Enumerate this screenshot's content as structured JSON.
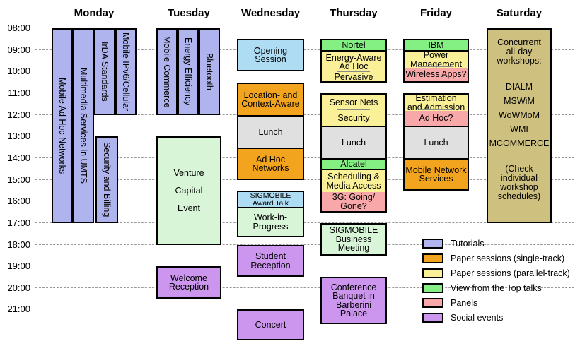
{
  "chart_data": {
    "type": "table",
    "subtype": "weekly-conference-schedule",
    "grid": "dashed hourly lines",
    "legend_position": "bottom-right",
    "days": [
      "Monday",
      "Tuesday",
      "Wednesday",
      "Thursday",
      "Friday",
      "Saturday"
    ],
    "time_axis": {
      "start": "08:00",
      "end": "21:00",
      "tick_interval_minutes": 60,
      "ticks": [
        "08:00",
        "09:00",
        "10:00",
        "11:00",
        "12:00",
        "13:00",
        "14:00",
        "15:00",
        "16:00",
        "17:00",
        "18:00",
        "19:00",
        "20:00",
        "21:00"
      ]
    },
    "colors": {
      "tutorial": "#AFB4EE",
      "single": "#F2A41E",
      "parallel": "#FAF098",
      "top": "#84F084",
      "panel": "#F8A8A8",
      "social": "#CC95EE",
      "special": "#AEDCF3",
      "misc": "#D8F5D8",
      "lunch": "#E0E0E0",
      "workshops": "#CEC07E"
    },
    "legend": [
      {
        "label": "Tutorials",
        "category": "tutorial"
      },
      {
        "label": "Paper sessions (single-track)",
        "category": "single"
      },
      {
        "label": "Paper sessions (parallel-track)",
        "category": "parallel"
      },
      {
        "label": "View from the Top talks",
        "category": "top"
      },
      {
        "label": "Panels",
        "category": "panel"
      },
      {
        "label": "Social events",
        "category": "social"
      }
    ],
    "events": [
      {
        "day": "Monday",
        "track": 0,
        "start": "08:00",
        "end": "17:00",
        "orientation": "vertical",
        "sessions": [
          {
            "label": "Mobile Ad Hoc Networks",
            "category": "tutorial"
          }
        ]
      },
      {
        "day": "Monday",
        "track": 1,
        "start": "08:00",
        "end": "17:00",
        "orientation": "vertical",
        "sessions": [
          {
            "label": "Multimedia Services in UMTS",
            "category": "tutorial"
          }
        ]
      },
      {
        "day": "Monday",
        "track": 2,
        "start": "08:00",
        "end": "12:00",
        "orientation": "vertical",
        "sessions": [
          {
            "label": "IrDA Standards",
            "category": "tutorial"
          }
        ]
      },
      {
        "day": "Monday",
        "track": 3,
        "start": "08:00",
        "end": "12:00",
        "orientation": "vertical",
        "sessions": [
          {
            "label": "Mobile IPv6/Cellular",
            "category": "tutorial"
          }
        ]
      },
      {
        "day": "Monday",
        "slot": "extra",
        "start": "13:00",
        "end": "17:00",
        "orientation": "vertical",
        "sessions": [
          {
            "label": "Security and Billing",
            "category": "tutorial"
          }
        ]
      },
      {
        "day": "Tuesday",
        "track": 0,
        "start": "08:00",
        "end": "12:00",
        "orientation": "vertical",
        "sessions": [
          {
            "label": "Mobile Commerce",
            "category": "tutorial"
          }
        ]
      },
      {
        "day": "Tuesday",
        "track": 1,
        "start": "08:00",
        "end": "12:00",
        "orientation": "vertical",
        "sessions": [
          {
            "label": "Energy Efficiency",
            "category": "tutorial"
          }
        ]
      },
      {
        "day": "Tuesday",
        "track": 2,
        "start": "08:00",
        "end": "12:00",
        "orientation": "vertical",
        "sessions": [
          {
            "label": "Bluetooth",
            "category": "tutorial"
          }
        ]
      },
      {
        "day": "Tuesday",
        "start": "13:00",
        "end": "18:00",
        "wide_lines": true,
        "sessions": [
          {
            "label": "Venture\nCapital\nEvent",
            "category": "misc"
          }
        ]
      },
      {
        "day": "Tuesday",
        "start": "19:00",
        "end": "20:30",
        "sessions": [
          {
            "label": "Welcome\nReception",
            "category": "social"
          }
        ]
      },
      {
        "day": "Wednesday",
        "start": "08:30",
        "end": "10:00",
        "sessions": [
          {
            "label": "Opening\nSession",
            "category": "special"
          }
        ]
      },
      {
        "day": "Wednesday",
        "start": "10:30",
        "end": "15:00",
        "sessions": [
          {
            "label": "Location- and\nContext-Aware",
            "category": "single",
            "until": "12:00",
            "divider": "black"
          },
          {
            "label": "Lunch",
            "category": "lunch",
            "until": "13:30",
            "divider": "black"
          },
          {
            "label": "Ad Hoc\nNetworks",
            "category": "single"
          }
        ]
      },
      {
        "day": "Wednesday",
        "start": "15:30",
        "end": "17:40",
        "sessions": [
          {
            "label": "SIGMOBILE\nAward Talk",
            "category": "special",
            "until": "16:15",
            "divider": "black",
            "small": true
          },
          {
            "label": "Work-in-\nProgress",
            "category": "misc"
          }
        ]
      },
      {
        "day": "Wednesday",
        "start": "18:00",
        "end": "19:30",
        "sessions": [
          {
            "label": "Student\nReception",
            "category": "social"
          }
        ]
      },
      {
        "day": "Wednesday",
        "start": "21:00",
        "end": "22:25",
        "sessions": [
          {
            "label": "Concert",
            "category": "social"
          }
        ]
      },
      {
        "day": "Thursday",
        "start": "08:30",
        "end": "10:30",
        "sessions": [
          {
            "label": "Nortel",
            "category": "top",
            "until": "09:00",
            "divider": "black"
          },
          {
            "label": "Energy-Aware\nAd Hoc",
            "category": "parallel",
            "until": "10:00",
            "divider": "thin"
          },
          {
            "label": "Pervasive",
            "category": "parallel"
          }
        ]
      },
      {
        "day": "Thursday",
        "start": "11:00",
        "end": "16:30",
        "sessions": [
          {
            "label": "Sensor Nets",
            "category": "parallel",
            "until": "11:45",
            "divider": "thin"
          },
          {
            "label": "Security",
            "category": "parallel",
            "until": "12:30",
            "divider": "black"
          },
          {
            "label": "Lunch",
            "category": "lunch",
            "until": "14:00",
            "divider": "black"
          },
          {
            "label": "Alcatel",
            "category": "top",
            "until": "14:30",
            "divider": "black"
          },
          {
            "label": "Scheduling &\nMedia Access",
            "category": "parallel",
            "until": "15:30",
            "divider": "thin"
          },
          {
            "label": "3G: Going/\nGone?",
            "category": "panel"
          }
        ]
      },
      {
        "day": "Thursday",
        "start": "17:00",
        "end": "18:30",
        "sessions": [
          {
            "label": "SIGMOBILE\nBusiness\nMeeting",
            "category": "misc"
          }
        ]
      },
      {
        "day": "Thursday",
        "start": "19:30",
        "end": "21:40",
        "sessions": [
          {
            "label": "Conference\nBanquet in\nBarberini\nPalace",
            "category": "social"
          }
        ]
      },
      {
        "day": "Friday",
        "start": "08:30",
        "end": "10:30",
        "sessions": [
          {
            "label": "IBM",
            "category": "top",
            "until": "09:00",
            "divider": "black"
          },
          {
            "label": "Power\nManagement",
            "category": "parallel",
            "until": "09:45",
            "divider": "thin"
          },
          {
            "label": "Wireless Apps?",
            "category": "panel"
          }
        ]
      },
      {
        "day": "Friday",
        "start": "11:00",
        "end": "15:30",
        "sessions": [
          {
            "label": "Estimation\nand Admission",
            "category": "parallel",
            "until": "11:45",
            "divider": "thin"
          },
          {
            "label": "Ad Hoc?",
            "category": "panel",
            "until": "12:30",
            "divider": "black"
          },
          {
            "label": "Lunch",
            "category": "lunch",
            "until": "14:00",
            "divider": "black"
          },
          {
            "label": "Mobile Network\nServices",
            "category": "single"
          }
        ]
      },
      {
        "day": "Saturday",
        "start": "08:00",
        "end": "17:00",
        "category": "workshops",
        "heading": "Concurrent\nall-day\nworkshops:",
        "workshops": [
          "DIALM",
          "MSWiM",
          "WoWMoM",
          "WMI",
          "MCOMMERCE"
        ],
        "note": "(Check\nindividual\nworkshop\nschedules)"
      }
    ]
  }
}
